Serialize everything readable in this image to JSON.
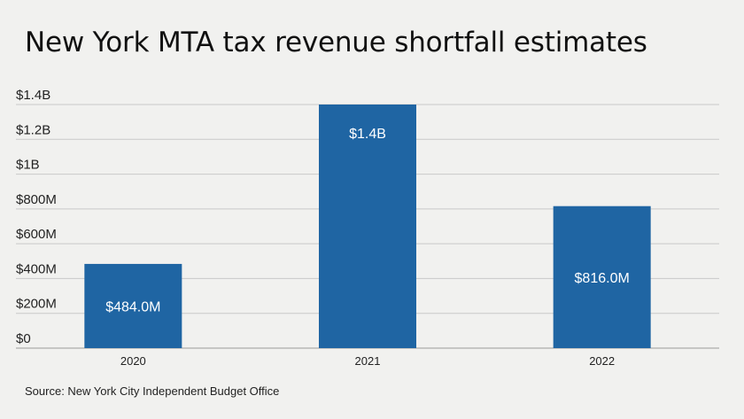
{
  "chart_data": {
    "type": "bar",
    "title": "New York MTA tax revenue shortfall estimates",
    "categories": [
      "2020",
      "2021",
      "2022"
    ],
    "values": [
      484000000,
      1400000000,
      816000000
    ],
    "data_labels": [
      "$484.0M",
      "$1.4B",
      "$816.0M"
    ],
    "ylim": [
      0,
      1400000000
    ],
    "yticks": [
      0,
      200000000,
      400000000,
      600000000,
      800000000,
      1000000000,
      1200000000,
      1400000000
    ],
    "ytick_labels": [
      "$0",
      "$200M",
      "$400M",
      "$600M",
      "$800M",
      "$1B",
      "$1.2B",
      "$1.4B"
    ],
    "xlabel": "",
    "ylabel": "",
    "grid": true,
    "legend": "none",
    "bar_color": "#1f65a3",
    "source": "Source: New York City Independent Budget Office"
  }
}
